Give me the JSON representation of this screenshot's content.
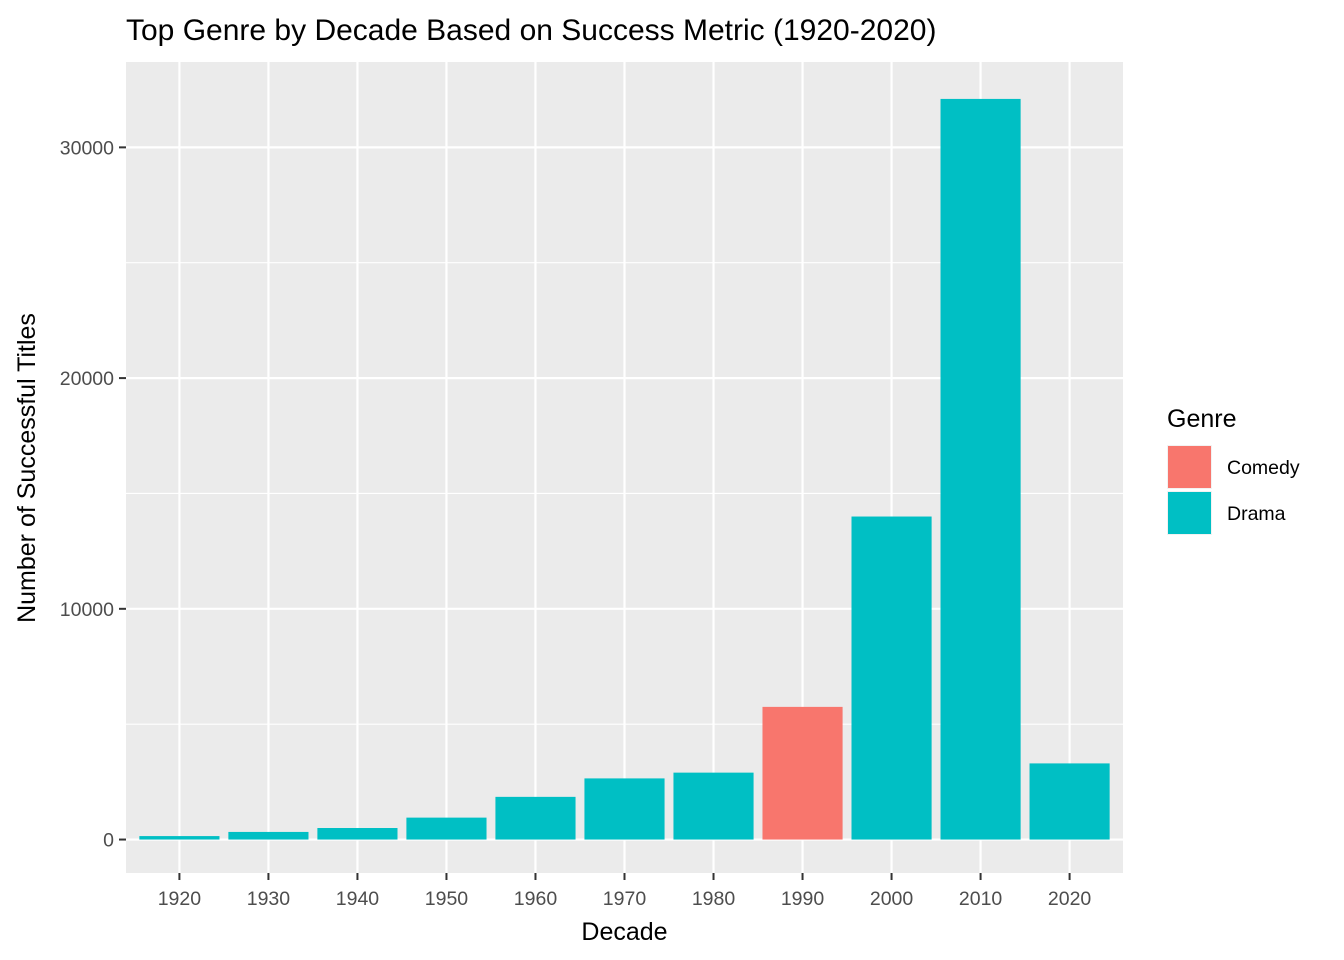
{
  "chart_data": {
    "type": "bar",
    "title": "Top Genre by Decade Based on Success Metric (1920-2020)",
    "xlabel": "Decade",
    "ylabel": "Number of Successful Titles",
    "categories": [
      "1920",
      "1930",
      "1940",
      "1950",
      "1960",
      "1970",
      "1980",
      "1990",
      "2000",
      "2010",
      "2020"
    ],
    "values": [
      150,
      330,
      500,
      950,
      1850,
      2650,
      2900,
      5750,
      14000,
      32100,
      3300
    ],
    "genres": [
      "Drama",
      "Drama",
      "Drama",
      "Drama",
      "Drama",
      "Drama",
      "Drama",
      "Comedy",
      "Drama",
      "Drama",
      "Drama"
    ],
    "y_ticks": [
      0,
      10000,
      20000,
      30000
    ],
    "ylim": [
      -1450,
      33700
    ],
    "grid": true,
    "legend": {
      "title": "Genre",
      "position": "right",
      "items": [
        {
          "label": "Comedy",
          "color": "#F8766D"
        },
        {
          "label": "Drama",
          "color": "#00BFC4"
        }
      ]
    },
    "colors": {
      "Comedy": "#F8766D",
      "Drama": "#00BFC4",
      "panel": "#EBEBEB",
      "grid": "#FFFFFF"
    }
  }
}
